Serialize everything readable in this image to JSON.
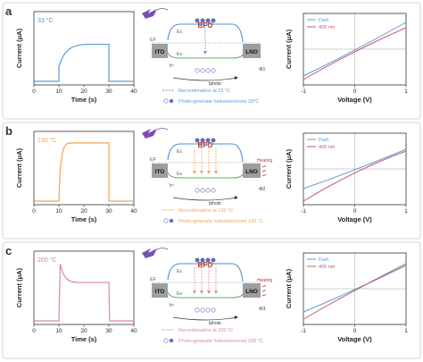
{
  "figure": {
    "rows": [
      {
        "letter": "a",
        "temp_label": "33 °C",
        "color": "#5b9bd5",
        "response_type": "rise",
        "i_ylabel": "Current (μA)",
        "i_xlabel": "Time (s)",
        "i_xticks": [
          "0",
          "10",
          "20",
          "30",
          "40"
        ],
        "i_xvals": [
          0,
          10,
          20,
          30,
          40
        ],
        "light_on_s": 10,
        "light_off_s": 30,
        "plateau_fraction": 0.56,
        "heating": "",
        "recomb_label": "Recombination at 33 °C",
        "photo_label": "Photo-generate holes/electrons 33°C",
        "phi_label": "Φ1",
        "iv_xlabel": "Voltage (V)",
        "iv_ylabel": "Current (μA)",
        "iv_xticks": [
          "-1",
          "0",
          "1"
        ],
        "iv_xvals": [
          -1,
          0,
          1
        ],
        "legend": [
          "Dark",
          "405 nm"
        ],
        "series_colors": [
          "#5b9bd5",
          "#c45c7c"
        ],
        "dark_endpoints": [
          -0.75,
          0.75
        ],
        "light_endpoints": [
          -0.85,
          0.6
        ]
      },
      {
        "letter": "b",
        "temp_label": "130 °C",
        "color": "#f4a259",
        "response_type": "rise",
        "i_ylabel": "Current (μA)",
        "i_xlabel": "Time (s)",
        "i_xticks": [
          "0",
          "10",
          "20",
          "30",
          "40"
        ],
        "i_xvals": [
          0,
          10,
          20,
          30,
          40
        ],
        "light_on_s": 10,
        "light_off_s": 30,
        "plateau_fraction": 0.88,
        "heating": "Heating",
        "recomb_label": "Recombination at 130 °C",
        "photo_label": "Photo-generate holes/electrons 130 °C",
        "phi_label": "Φ2",
        "iv_xlabel": "Voltage (V)",
        "iv_ylabel": "Current (μA)",
        "iv_xticks": [
          "-1",
          "0",
          "1"
        ],
        "iv_xvals": [
          -1,
          0,
          1
        ],
        "legend": [
          "Dark",
          "405 nm"
        ],
        "series_colors": [
          "#5b9bd5",
          "#c45c7c"
        ],
        "dark_endpoints": [
          -0.55,
          0.55
        ],
        "light_endpoints": [
          -0.9,
          0.5
        ]
      },
      {
        "letter": "c",
        "temp_label": "200 °C",
        "color": "#d98a9a",
        "response_type": "spike",
        "i_ylabel": "Current (μA)",
        "i_xlabel": "Time (s)",
        "i_xticks": [
          "0",
          "10",
          "20",
          "30",
          "40"
        ],
        "i_xvals": [
          0,
          10,
          20,
          30,
          40
        ],
        "light_on_s": 10,
        "light_off_s": 30,
        "plateau_fraction": 0.58,
        "spike_fraction": 0.86,
        "heating": "Heating",
        "recomb_label": "Recombination at 200 °C",
        "photo_label": "Photo-generate holes/electrons 200 °C",
        "phi_label": "Φ3",
        "iv_xlabel": "Voltage (V)",
        "iv_ylabel": "Current (μA)",
        "iv_xticks": [
          "-1",
          "0",
          "1"
        ],
        "iv_xvals": [
          -1,
          0,
          1
        ],
        "legend": [
          "Dark",
          "405 nm"
        ],
        "series_colors": [
          "#5b9bd5",
          "#c45c7c"
        ],
        "dark_endpoints": [
          -0.65,
          0.65
        ],
        "light_endpoints": [
          -0.85,
          0.7
        ]
      }
    ],
    "diagram": {
      "ito": "ITO",
      "lno": "LNO",
      "bfo": "BFO",
      "ec": "Ec",
      "ev": "Ev",
      "ef": "EF",
      "hplus": "h⁺",
      "iphoto": "Iphoto"
    }
  }
}
